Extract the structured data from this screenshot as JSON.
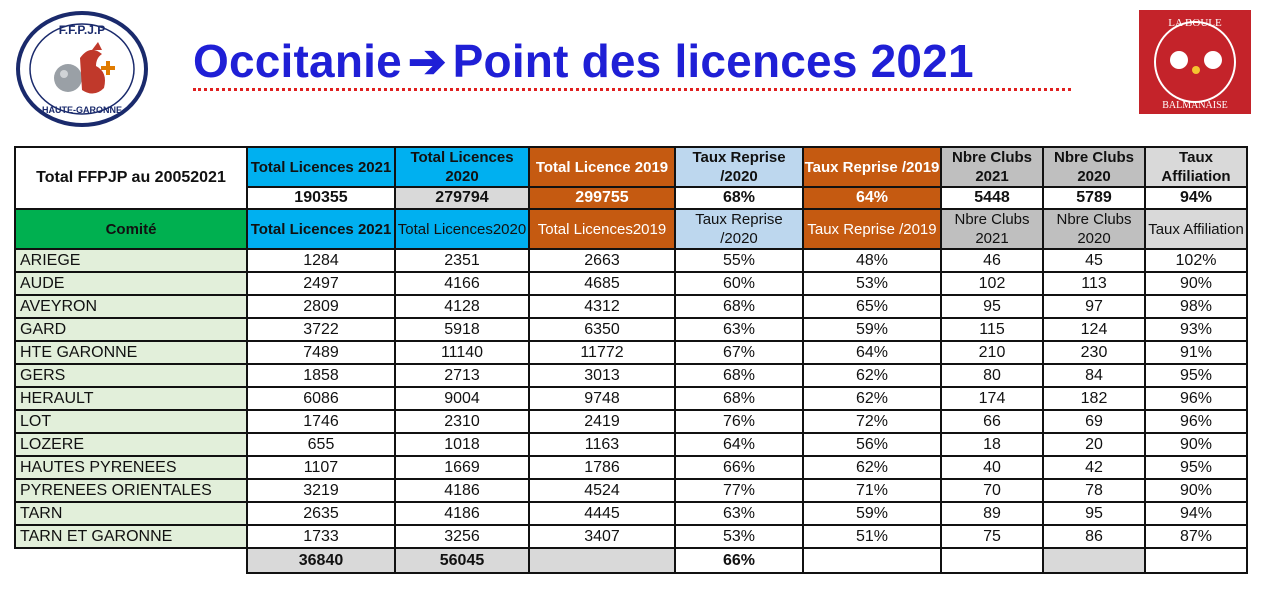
{
  "title": {
    "left": "Occitanie",
    "arrow": "➔",
    "right": "Point des licences 2021"
  },
  "logo_left": {
    "top_text": "F.F.P.J.P",
    "bottom_text": "HAUTE-GARONNE"
  },
  "logo_right": {
    "top_text": "LA BOULE",
    "bottom_text": "BALMANAISE"
  },
  "summary": {
    "label": "Total FFPJP au 20052021",
    "headers": [
      "Total Licences 2021",
      "Total Licences 2020",
      "Total Licence 2019",
      "Taux Reprise /2020",
      "Taux Reprise /2019",
      "Nbre Clubs 2021",
      "Nbre Clubs 2020",
      "Taux Affiliation"
    ],
    "values": [
      "190355",
      "279794",
      "299755",
      "68%",
      "64%",
      "5448",
      "5789",
      "94%"
    ]
  },
  "columns": [
    "Comité",
    "Total Licences 2021",
    "Total Licences2020",
    "Total Licences2019",
    "Taux Reprise /2020",
    "Taux Reprise /2019",
    "Nbre Clubs 2021",
    "Nbre Clubs 2020",
    "Taux Affiliation"
  ],
  "rows": [
    [
      "ARIEGE",
      "1284",
      "2351",
      "2663",
      "55%",
      "48%",
      "46",
      "45",
      "102%"
    ],
    [
      "AUDE",
      "2497",
      "4166",
      "4685",
      "60%",
      "53%",
      "102",
      "113",
      "90%"
    ],
    [
      "AVEYRON",
      "2809",
      "4128",
      "4312",
      "68%",
      "65%",
      "95",
      "97",
      "98%"
    ],
    [
      "GARD",
      "3722",
      "5918",
      "6350",
      "63%",
      "59%",
      "115",
      "124",
      "93%"
    ],
    [
      "HTE GARONNE",
      "7489",
      "11140",
      "11772",
      "67%",
      "64%",
      "210",
      "230",
      "91%"
    ],
    [
      "GERS",
      "1858",
      "2713",
      "3013",
      "68%",
      "62%",
      "80",
      "84",
      "95%"
    ],
    [
      "HERAULT",
      "6086",
      "9004",
      "9748",
      "68%",
      "62%",
      "174",
      "182",
      "96%"
    ],
    [
      "LOT",
      "1746",
      "2310",
      "2419",
      "76%",
      "72%",
      "66",
      "69",
      "96%"
    ],
    [
      "LOZERE",
      "655",
      "1018",
      "1163",
      "64%",
      "56%",
      "18",
      "20",
      "90%"
    ],
    [
      "HAUTES PYRENEES",
      "1107",
      "1669",
      "1786",
      "66%",
      "62%",
      "40",
      "42",
      "95%"
    ],
    [
      "PYRENEES ORIENTALES",
      "3219",
      "4186",
      "4524",
      "77%",
      "71%",
      "70",
      "78",
      "90%"
    ],
    [
      "TARN",
      "2635",
      "4186",
      "4445",
      "63%",
      "59%",
      "89",
      "95",
      "94%"
    ],
    [
      "TARN  ET  GARONNE",
      "1733",
      "3256",
      "3407",
      "53%",
      "51%",
      "75",
      "86",
      "87%"
    ]
  ],
  "totals": [
    "36840",
    "56045",
    "",
    "66%",
    "",
    "",
    "",
    ""
  ],
  "colors": {
    "title": "#1f1fd6",
    "underline": "#e02020",
    "blue": "#00b0f0",
    "orange": "#c55a11",
    "light_blue": "#bdd7ee",
    "grey": "#bfbfbf",
    "green": "#00b050",
    "light_green": "#e2efda"
  }
}
